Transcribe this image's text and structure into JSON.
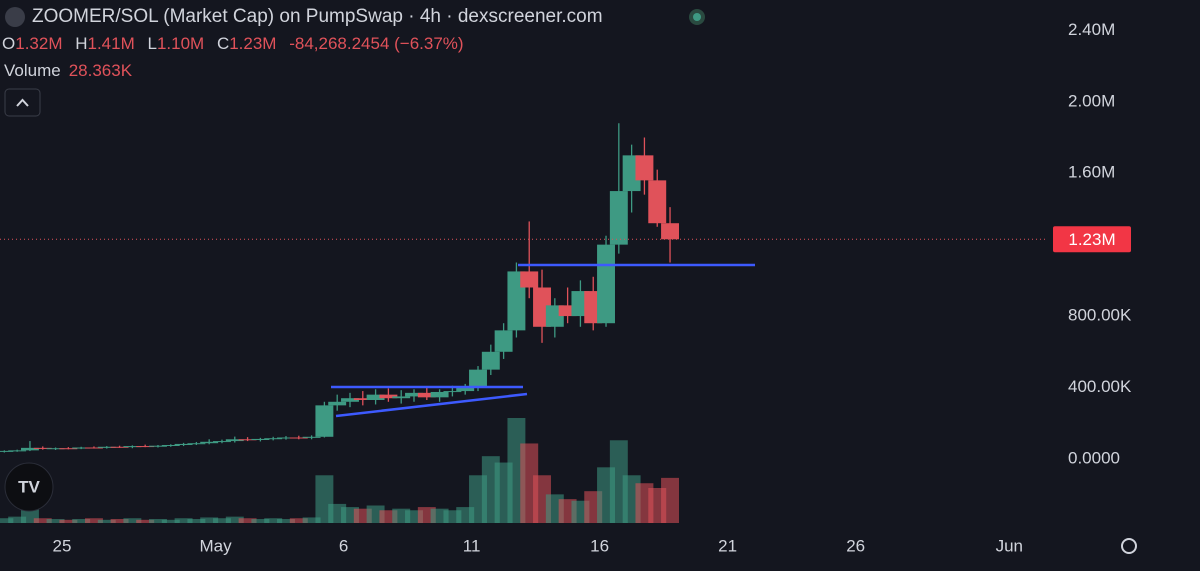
{
  "header": {
    "title": "ZOOMER/SOL (Market Cap) on PumpSwap · 4h · dexscreener.com",
    "legend": {
      "o": "O",
      "o_value": "1.32M",
      "h": "H",
      "h_value": "1.41M",
      "l": "L",
      "l_value": "1.10M",
      "c": "C",
      "c_value": "1.23M",
      "change": "-84,268.2454 (−6.37%)",
      "volume": "Volume",
      "volume_value": "28.363K"
    }
  },
  "chart_data": {
    "type": "candlestick",
    "x": [
      22.75,
      23.25,
      23.75,
      24.25,
      24.75,
      25.25,
      25.75,
      26.25,
      26.75,
      27.25,
      27.75,
      28.25,
      28.75,
      29.25,
      29.75,
      30.25,
      30.75,
      31.25,
      31.75,
      32.25,
      32.75,
      33.25,
      33.75,
      34.25,
      34.75,
      35.25,
      35.75,
      36.25,
      36.75,
      37.25,
      37.75,
      38.25,
      38.75,
      39.25,
      39.75,
      40.25,
      40.75,
      41.25,
      41.75,
      42.25,
      42.75,
      43.25,
      43.75,
      44.25,
      44.75,
      45.25,
      45.75,
      46.25,
      46.75,
      47.25,
      47.75,
      48.25,
      48.75
    ],
    "open": [
      40000,
      45000,
      48000,
      62000,
      56000,
      60000,
      58000,
      64000,
      62000,
      68000,
      66000,
      72000,
      70000,
      74000,
      78000,
      84000,
      88000,
      96000,
      100000,
      110000,
      106000,
      112000,
      116000,
      120000,
      118000,
      124000,
      300000,
      320000,
      340000,
      330000,
      360000,
      340000,
      350000,
      370000,
      345000,
      375000,
      380000,
      400000,
      500000,
      600000,
      720000,
      1050000,
      960000,
      740000,
      860000,
      800000,
      940000,
      760000,
      1200000,
      1500000,
      1700000,
      1560000,
      1320000
    ],
    "high": [
      48000,
      52000,
      100000,
      70000,
      64000,
      66000,
      68000,
      70000,
      72000,
      74000,
      76000,
      80000,
      78000,
      82000,
      90000,
      95000,
      110000,
      108000,
      125000,
      122000,
      118000,
      124000,
      128000,
      130000,
      132000,
      320000,
      360000,
      370000,
      380000,
      390000,
      395000,
      385000,
      390000,
      400000,
      390000,
      410000,
      420000,
      520000,
      640000,
      760000,
      1100000,
      1330000,
      1060000,
      900000,
      960000,
      1000000,
      1020000,
      1250000,
      1880000,
      1760000,
      1800000,
      1620000,
      1410000
    ],
    "low": [
      36000,
      40000,
      44000,
      52000,
      50000,
      54000,
      55000,
      58000,
      58000,
      62000,
      60000,
      66000,
      64000,
      68000,
      72000,
      78000,
      82000,
      88000,
      92000,
      100000,
      98000,
      104000,
      108000,
      110000,
      110000,
      120000,
      270000,
      290000,
      300000,
      305000,
      320000,
      310000,
      320000,
      330000,
      320000,
      350000,
      360000,
      380000,
      470000,
      560000,
      680000,
      900000,
      650000,
      680000,
      760000,
      740000,
      720000,
      740000,
      1150000,
      1380000,
      1480000,
      1300000,
      1100000
    ],
    "close": [
      45000,
      48000,
      62000,
      56000,
      60000,
      58000,
      64000,
      62000,
      68000,
      66000,
      72000,
      70000,
      74000,
      78000,
      84000,
      88000,
      96000,
      100000,
      110000,
      106000,
      112000,
      116000,
      120000,
      118000,
      124000,
      300000,
      320000,
      340000,
      330000,
      360000,
      340000,
      350000,
      370000,
      345000,
      375000,
      380000,
      400000,
      500000,
      600000,
      720000,
      1050000,
      960000,
      740000,
      860000,
      800000,
      940000,
      760000,
      1200000,
      1500000,
      1700000,
      1560000,
      1320000,
      1230000
    ],
    "volume": [
      3000,
      4000,
      9000,
      3000,
      2500,
      2000,
      2500,
      3000,
      2000,
      2500,
      3000,
      2000,
      2500,
      2000,
      3000,
      2500,
      3500,
      3000,
      4000,
      3000,
      2500,
      3000,
      2500,
      3000,
      3500,
      30000,
      12000,
      10000,
      9000,
      11000,
      8000,
      9000,
      8000,
      10000,
      9000,
      8000,
      10000,
      30000,
      42000,
      38000,
      66000,
      50000,
      30000,
      18000,
      15000,
      14000,
      20000,
      35000,
      52000,
      30000,
      25000,
      22000,
      28363
    ],
    "last_price_label": "1.23M",
    "up_color": "#3e9a83",
    "down_color": "#e0525a",
    "xlim": [
      22.58,
      63.2
    ],
    "xticks": [
      25,
      {
        "value": 31,
        "label": "May"
      },
      {
        "value": 36,
        "label": "6"
      },
      {
        "value": 41,
        "label": "11"
      },
      {
        "value": 46,
        "label": "16"
      },
      {
        "value": 51,
        "label": "21"
      },
      {
        "value": 56,
        "label": "26"
      },
      {
        "value": 62,
        "label": "Jun"
      }
    ],
    "ylim": [
      -370000,
      2570000
    ],
    "yticks": [
      {
        "value": 0,
        "label": "0.0000"
      },
      {
        "value": 400000,
        "label": "400.00K"
      },
      {
        "value": 800000,
        "label": "800.00K"
      },
      {
        "value": 1600000,
        "label": "1.60M"
      },
      {
        "value": 2000000,
        "label": "2.00M"
      },
      {
        "value": 2400000,
        "label": "2.40M"
      }
    ],
    "grid": false
  }
}
